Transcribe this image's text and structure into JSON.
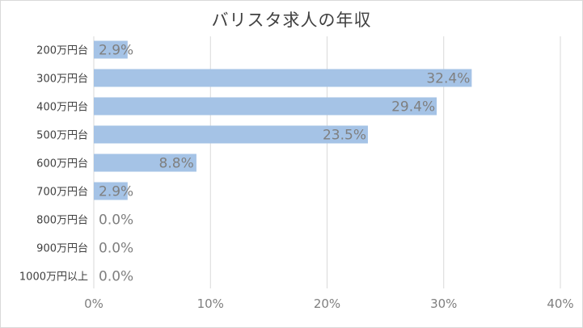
{
  "chart_data": {
    "type": "bar",
    "orientation": "horizontal",
    "title": "バリスタ求人の年収",
    "categories": [
      "200万円台",
      "300万円台",
      "400万円台",
      "500万円台",
      "600万円台",
      "700万円台",
      "800万円台",
      "900万円台",
      "1000万円以上"
    ],
    "values": [
      2.9,
      32.4,
      29.4,
      23.5,
      8.8,
      2.9,
      0.0,
      0.0,
      0.0
    ],
    "value_labels": [
      "2.9%",
      "32.4%",
      "29.4%",
      "23.5%",
      "8.8%",
      "2.9%",
      "0.0%",
      "0.0%",
      "0.0%"
    ],
    "x_ticks": [
      0,
      10,
      20,
      30,
      40
    ],
    "x_tick_labels": [
      "0%",
      "10%",
      "20%",
      "30%",
      "40%"
    ],
    "xlim": [
      0,
      40
    ],
    "grid": "vertical",
    "legend": "none",
    "bar_color": "#a5c3e6"
  }
}
